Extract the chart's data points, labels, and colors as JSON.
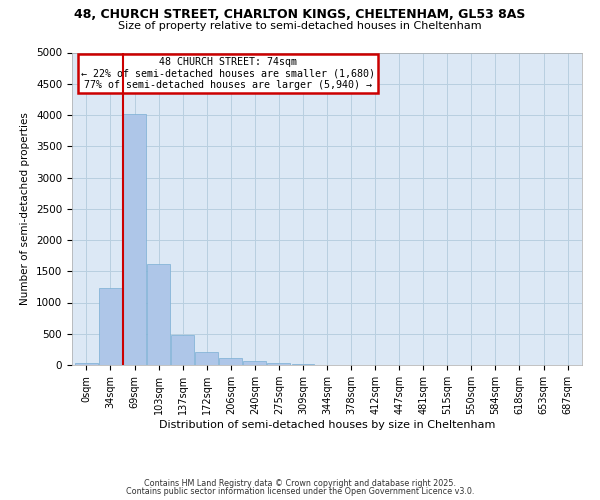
{
  "title_line1": "48, CHURCH STREET, CHARLTON KINGS, CHELTENHAM, GL53 8AS",
  "title_line2": "Size of property relative to semi-detached houses in Cheltenham",
  "xlabel": "Distribution of semi-detached houses by size in Cheltenham",
  "ylabel": "Number of semi-detached properties",
  "bar_labels": [
    "0sqm",
    "34sqm",
    "69sqm",
    "103sqm",
    "137sqm",
    "172sqm",
    "206sqm",
    "240sqm",
    "275sqm",
    "309sqm",
    "344sqm",
    "378sqm",
    "412sqm",
    "447sqm",
    "481sqm",
    "515sqm",
    "550sqm",
    "584sqm",
    "618sqm",
    "653sqm",
    "687sqm"
  ],
  "bar_values": [
    30,
    1230,
    4020,
    1620,
    480,
    215,
    115,
    60,
    35,
    20,
    0,
    0,
    0,
    0,
    0,
    0,
    0,
    0,
    0,
    0,
    0
  ],
  "property_label": "48 CHURCH STREET: 74sqm",
  "smaller_pct": 22,
  "smaller_count": "1,680",
  "larger_pct": 77,
  "larger_count": "5,940",
  "bar_color": "#aec6e8",
  "bar_edge_color": "#7aafd4",
  "vline_color": "#cc0000",
  "annotation_box_edge": "#cc0000",
  "background_color": "#ffffff",
  "axes_bg_color": "#dce8f5",
  "grid_color": "#b8cfe0",
  "ylim": [
    0,
    5000
  ],
  "yticks": [
    0,
    500,
    1000,
    1500,
    2000,
    2500,
    3000,
    3500,
    4000,
    4500,
    5000
  ],
  "vline_x_bin": 1,
  "footer_line1": "Contains HM Land Registry data © Crown copyright and database right 2025.",
  "footer_line2": "Contains public sector information licensed under the Open Government Licence v3.0."
}
